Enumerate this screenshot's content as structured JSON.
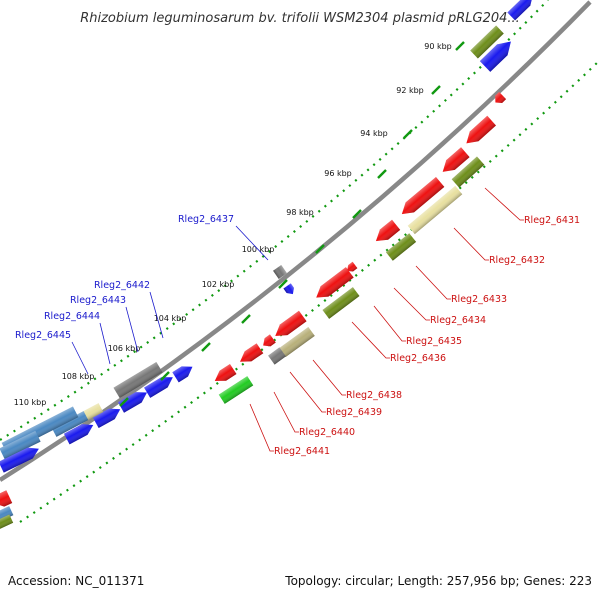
{
  "title": "Rhizobium leguminosarum bv. trifolii WSM2304 plasmid pRLG204...",
  "footer": {
    "accession": "Accession: NC_011371",
    "summary": "Topology: circular; Length: 257,956 bp; Genes: 223"
  },
  "ticks": [
    "90 kbp",
    "92 kbp",
    "94 kbp",
    "96 kbp",
    "98 kbp",
    "100 kbp",
    "102 kbp",
    "104 kbp",
    "106 kbp",
    "108 kbp",
    "110 kbp"
  ],
  "gene_labels": {
    "blue": [
      "Rleg2_6437",
      "Rleg2_6442",
      "Rleg2_6443",
      "Rleg2_6444",
      "Rleg2_6445"
    ],
    "red": [
      "Rleg2_6431",
      "Rleg2_6432",
      "Rleg2_6433",
      "Rleg2_6434",
      "Rleg2_6435",
      "Rleg2_6436",
      "Rleg2_6438",
      "Rleg2_6439",
      "Rleg2_6440",
      "Rleg2_6441"
    ]
  },
  "colors": {
    "forward_cds": "#1a1aee",
    "reverse_cds": "#ee1111",
    "steel": "#4a88c2",
    "olive": "#6e8e1a",
    "tan": "#b8b07a",
    "khaki": "#e8e0a0",
    "grey": "#777777",
    "green": "#22cc22",
    "backbone": "#888888",
    "tick_dots": "#119911",
    "blue_label": "#1a1acc",
    "red_label": "#cc1111"
  }
}
